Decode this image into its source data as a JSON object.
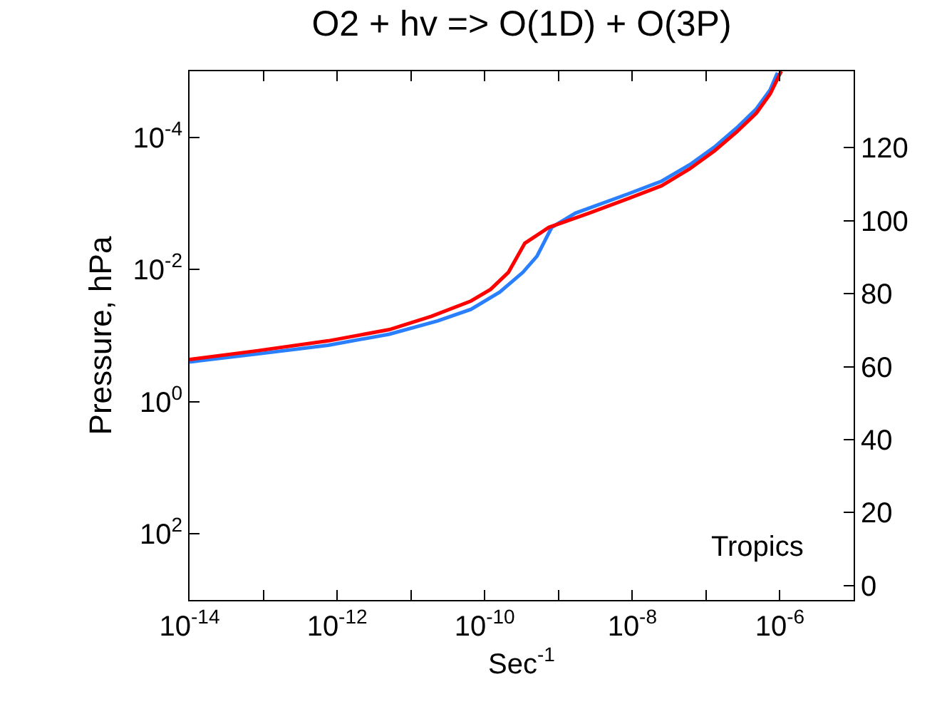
{
  "chart_data": {
    "type": "line",
    "title": "O2 + hv => O(1D) + O(3P)",
    "xlabel": "Sec$^{-1}$",
    "ylabel": "Pressure, hPa",
    "log": "xy",
    "marker": "none",
    "line_style": "solid",
    "xlim": [
      1e-14,
      1e-05
    ],
    "xticks": [
      {
        "value": 1e-14,
        "label": "10$^{-14}$"
      },
      {
        "value": 1e-13,
        "label": null
      },
      {
        "value": 1e-12,
        "label": "10$^{-12}$"
      },
      {
        "value": 1e-11,
        "label": null
      },
      {
        "value": 1e-10,
        "label": "10$^{-10}$"
      },
      {
        "value": 1e-09,
        "label": null
      },
      {
        "value": 1e-08,
        "label": "10$^{-8}$"
      },
      {
        "value": 1e-07,
        "label": null
      },
      {
        "value": 1e-06,
        "label": "10$^{-6}$"
      }
    ],
    "ylim": [
      1000,
      1e-05
    ],
    "yticks": [
      {
        "value": 0.0001,
        "label": "10$^{-4}$"
      },
      {
        "value": 0.01,
        "label": "10$^{-2}$"
      },
      {
        "value": 1,
        "label": "10$^{0}$"
      },
      {
        "value": 100,
        "label": "10$^{2}$"
      }
    ],
    "y2lim": [
      -4,
      141
    ],
    "y2ticks": [
      0,
      20,
      40,
      60,
      80,
      100,
      120
    ],
    "annotations": [
      "Tropics"
    ],
    "series": [
      {
        "color": "#2a7fff",
        "x": [
          1e-14,
          8.1e-14,
          7.6e-13,
          5.1e-12,
          2.3e-11,
          6.5e-11,
          1.6e-10,
          3.3e-10,
          5.1e-10,
          8.1e-10,
          1.7e-09,
          8.7e-09,
          2.5e-08,
          6e-08,
          1.3e-07,
          2.6e-07,
          4.8e-07,
          7.4e-07,
          9.3e-07
        ],
        "values": [
          0.25,
          0.19,
          0.14,
          0.095,
          0.06,
          0.04,
          0.022,
          0.011,
          0.0063,
          0.0023,
          0.0014,
          0.00072,
          0.00046,
          0.00026,
          0.00014,
          7.2e-05,
          3.7e-05,
          1.9e-05,
          1.05e-05
        ]
      },
      {
        "color": "#ff0000",
        "x": [
          1e-14,
          8.1e-14,
          7.6e-13,
          5.1e-12,
          1.9e-11,
          6.5e-11,
          1.2e-10,
          2.1e-10,
          3.5e-10,
          7.4e-10,
          2.6e-09,
          8.7e-09,
          2.5e-08,
          6e-08,
          1.3e-07,
          2.6e-07,
          4.8e-07,
          7.4e-07,
          1e-06,
          1.05e-06
        ],
        "values": [
          0.23,
          0.17,
          0.12,
          0.081,
          0.051,
          0.03,
          0.02,
          0.011,
          0.004,
          0.0023,
          0.0014,
          0.00085,
          0.00054,
          0.0003,
          0.00016,
          8.3e-05,
          4.3e-05,
          2.2e-05,
          1.1e-05,
          1e-05
        ]
      }
    ]
  }
}
